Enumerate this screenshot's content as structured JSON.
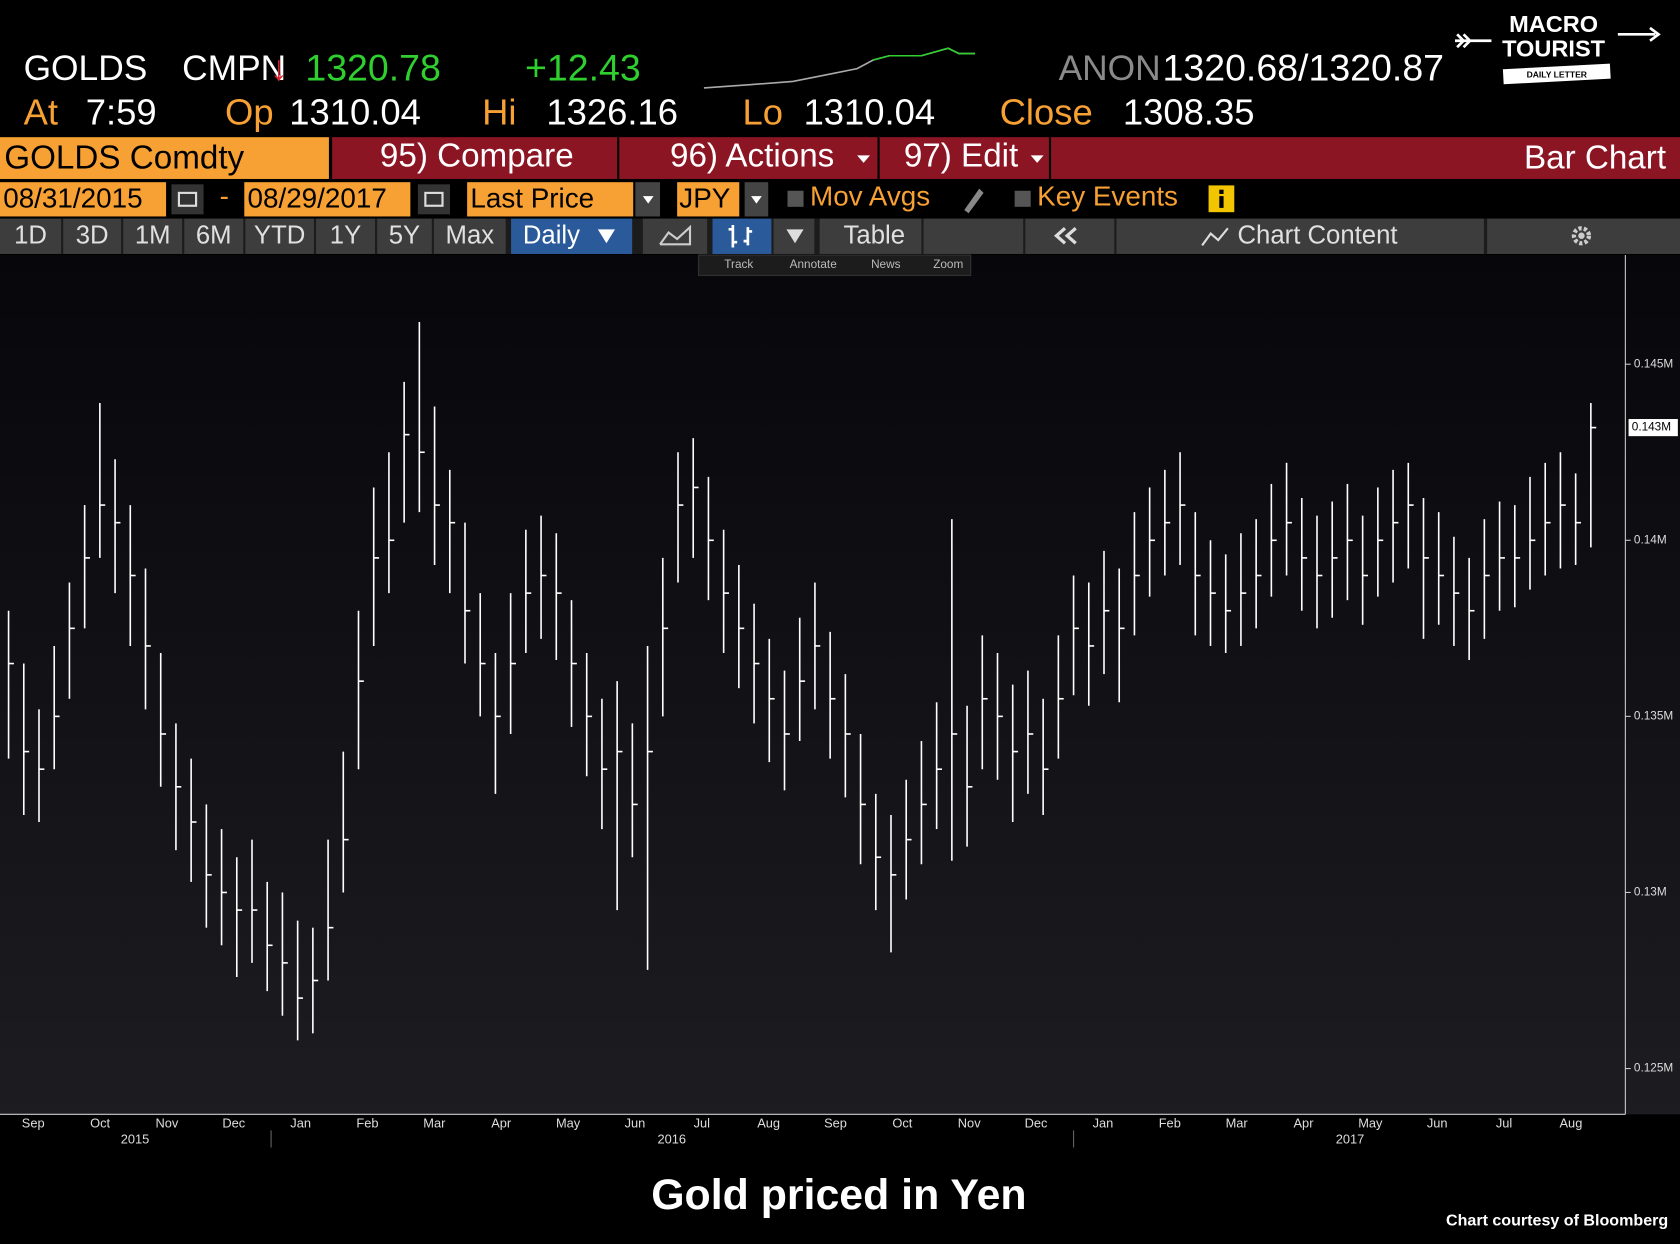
{
  "terminal": {
    "ticker": "GOLDS",
    "source": "CMPN",
    "arrow": "↓",
    "last": "1320.78",
    "change": "+12.43",
    "anon": "ANON",
    "bid_ask": "1320.68/1320.87",
    "time_label": "At",
    "time": "7:59",
    "open_label": "Op",
    "open": "1310.04",
    "high_label": "Hi",
    "high": "1326.16",
    "low_label": "Lo",
    "low": "1310.04",
    "close_label": "Close",
    "close": "1308.35",
    "security": "GOLDS Comdty",
    "menu": [
      "95) Compare",
      "96) Actions",
      "97) Edit"
    ],
    "view": "Bar Chart",
    "start_date": "08/31/2015",
    "date_separator": "-",
    "end_date": "08/29/2017",
    "field": "Last Price",
    "currency": "JPY",
    "mov_avgs": "Mov Avgs",
    "key_events": "Key Events",
    "periods": [
      "1D",
      "3D",
      "1M",
      "6M",
      "YTD",
      "1Y",
      "5Y",
      "Max"
    ],
    "frequency": "Daily",
    "table": "Table",
    "chart_content": "Chart Content",
    "tools": [
      "Track",
      "Annotate",
      "News",
      "Zoom"
    ]
  },
  "logo": {
    "line1": "MACRO",
    "line2": "TOURIST",
    "line3": "DAILY LETTER"
  },
  "chart_data": {
    "type": "hlc",
    "title": "Gold priced in Yen",
    "source": "Chart courtesy of Bloomberg",
    "color": "#ffffff",
    "months": [
      "Sep",
      "Oct",
      "Nov",
      "Dec",
      "Jan",
      "Feb",
      "Mar",
      "Apr",
      "May",
      "Jun",
      "Jul",
      "Aug",
      "Sep",
      "Oct",
      "Nov",
      "Dec",
      "Jan",
      "Feb",
      "Mar",
      "Apr",
      "May",
      "Jun",
      "Jul",
      "Aug"
    ],
    "years": [
      "2015",
      "2016",
      "2017"
    ],
    "ylim": [
      123700,
      148100
    ],
    "yticks": [
      {
        "value": 125000,
        "label": "0.125M"
      },
      {
        "value": 130000,
        "label": "0.13M"
      },
      {
        "value": 135000,
        "label": "0.135M"
      },
      {
        "value": 140000,
        "label": "0.14M"
      },
      {
        "value": 145000,
        "label": "0.145M"
      }
    ],
    "last_price": {
      "value": 143200,
      "label": "0.143M"
    },
    "high": [
      138000,
      136500,
      135200,
      137000,
      138800,
      141000,
      143900,
      142300,
      141000,
      139200,
      136800,
      134800,
      133800,
      132500,
      131800,
      131000,
      131500,
      130300,
      130000,
      129200,
      129000,
      131500,
      134000,
      138000,
      141500,
      142500,
      144500,
      146200,
      143800,
      142000,
      140500,
      138500,
      136800,
      138500,
      140300,
      140700,
      140200,
      138300,
      136800,
      135500,
      136000,
      134800,
      137000,
      139500,
      142500,
      142900,
      141800,
      140300,
      139300,
      138200,
      137200,
      136300,
      137800,
      138800,
      137400,
      136200,
      134500,
      132800,
      132200,
      133200,
      134300,
      135400,
      140600,
      135300,
      137300,
      136800,
      135900,
      136300,
      135500,
      137300,
      139000,
      138800,
      139700,
      139200,
      140800,
      141500,
      142000,
      142500,
      140800,
      140000,
      139600,
      140200,
      140600,
      141600,
      142200,
      141200,
      140700,
      141100,
      141600,
      140700,
      141500,
      142000,
      142200,
      141200,
      140800,
      140100,
      139500,
      140600,
      141100,
      141000,
      141800,
      142200,
      142500,
      141900,
      143900
    ],
    "low": [
      133800,
      132200,
      132000,
      133500,
      135500,
      137500,
      139500,
      138500,
      137000,
      135200,
      133000,
      131200,
      130300,
      129000,
      128500,
      127600,
      128000,
      127200,
      126500,
      125800,
      126000,
      127500,
      130000,
      133500,
      137000,
      138500,
      140500,
      140800,
      139300,
      138500,
      136500,
      135000,
      132800,
      134500,
      136800,
      137200,
      136600,
      134700,
      133300,
      131800,
      129500,
      131000,
      127800,
      135000,
      138800,
      139500,
      138300,
      136800,
      135800,
      134800,
      133700,
      132900,
      134300,
      135200,
      133800,
      132700,
      130800,
      129500,
      128300,
      129800,
      130800,
      131800,
      130900,
      131300,
      133500,
      133200,
      132000,
      132800,
      132200,
      133800,
      135600,
      135300,
      136200,
      135400,
      137300,
      138400,
      139000,
      139300,
      137300,
      137000,
      136800,
      137000,
      137500,
      138400,
      139000,
      138000,
      137500,
      137800,
      138300,
      137600,
      138400,
      138800,
      139200,
      137200,
      137600,
      137000,
      136600,
      137200,
      138000,
      138100,
      138600,
      139000,
      139200,
      139300,
      139800
    ],
    "close": [
      136500,
      134000,
      133500,
      135000,
      137500,
      139500,
      141000,
      140500,
      139000,
      137000,
      134500,
      133000,
      132000,
      130500,
      130000,
      129500,
      129500,
      128500,
      128000,
      127000,
      127500,
      129000,
      131500,
      136000,
      139500,
      140000,
      143000,
      142500,
      141000,
      140500,
      138000,
      136500,
      135000,
      136500,
      138500,
      139000,
      138500,
      136500,
      135000,
      133500,
      134000,
      132500,
      134000,
      137500,
      141000,
      141500,
      140000,
      138500,
      137500,
      136500,
      135500,
      134500,
      136000,
      137000,
      135500,
      134500,
      132500,
      131000,
      130500,
      131500,
      132500,
      133500,
      134500,
      133000,
      135500,
      135000,
      134000,
      134500,
      133500,
      135500,
      137500,
      137000,
      138000,
      137500,
      139000,
      140000,
      140500,
      141000,
      139000,
      138500,
      138000,
      138500,
      139000,
      140000,
      140500,
      139500,
      139000,
      139500,
      140000,
      139000,
      140000,
      140500,
      141000,
      139500,
      139000,
      138500,
      138000,
      139000,
      139500,
      139500,
      140000,
      140500,
      141000,
      140500,
      143200
    ]
  }
}
